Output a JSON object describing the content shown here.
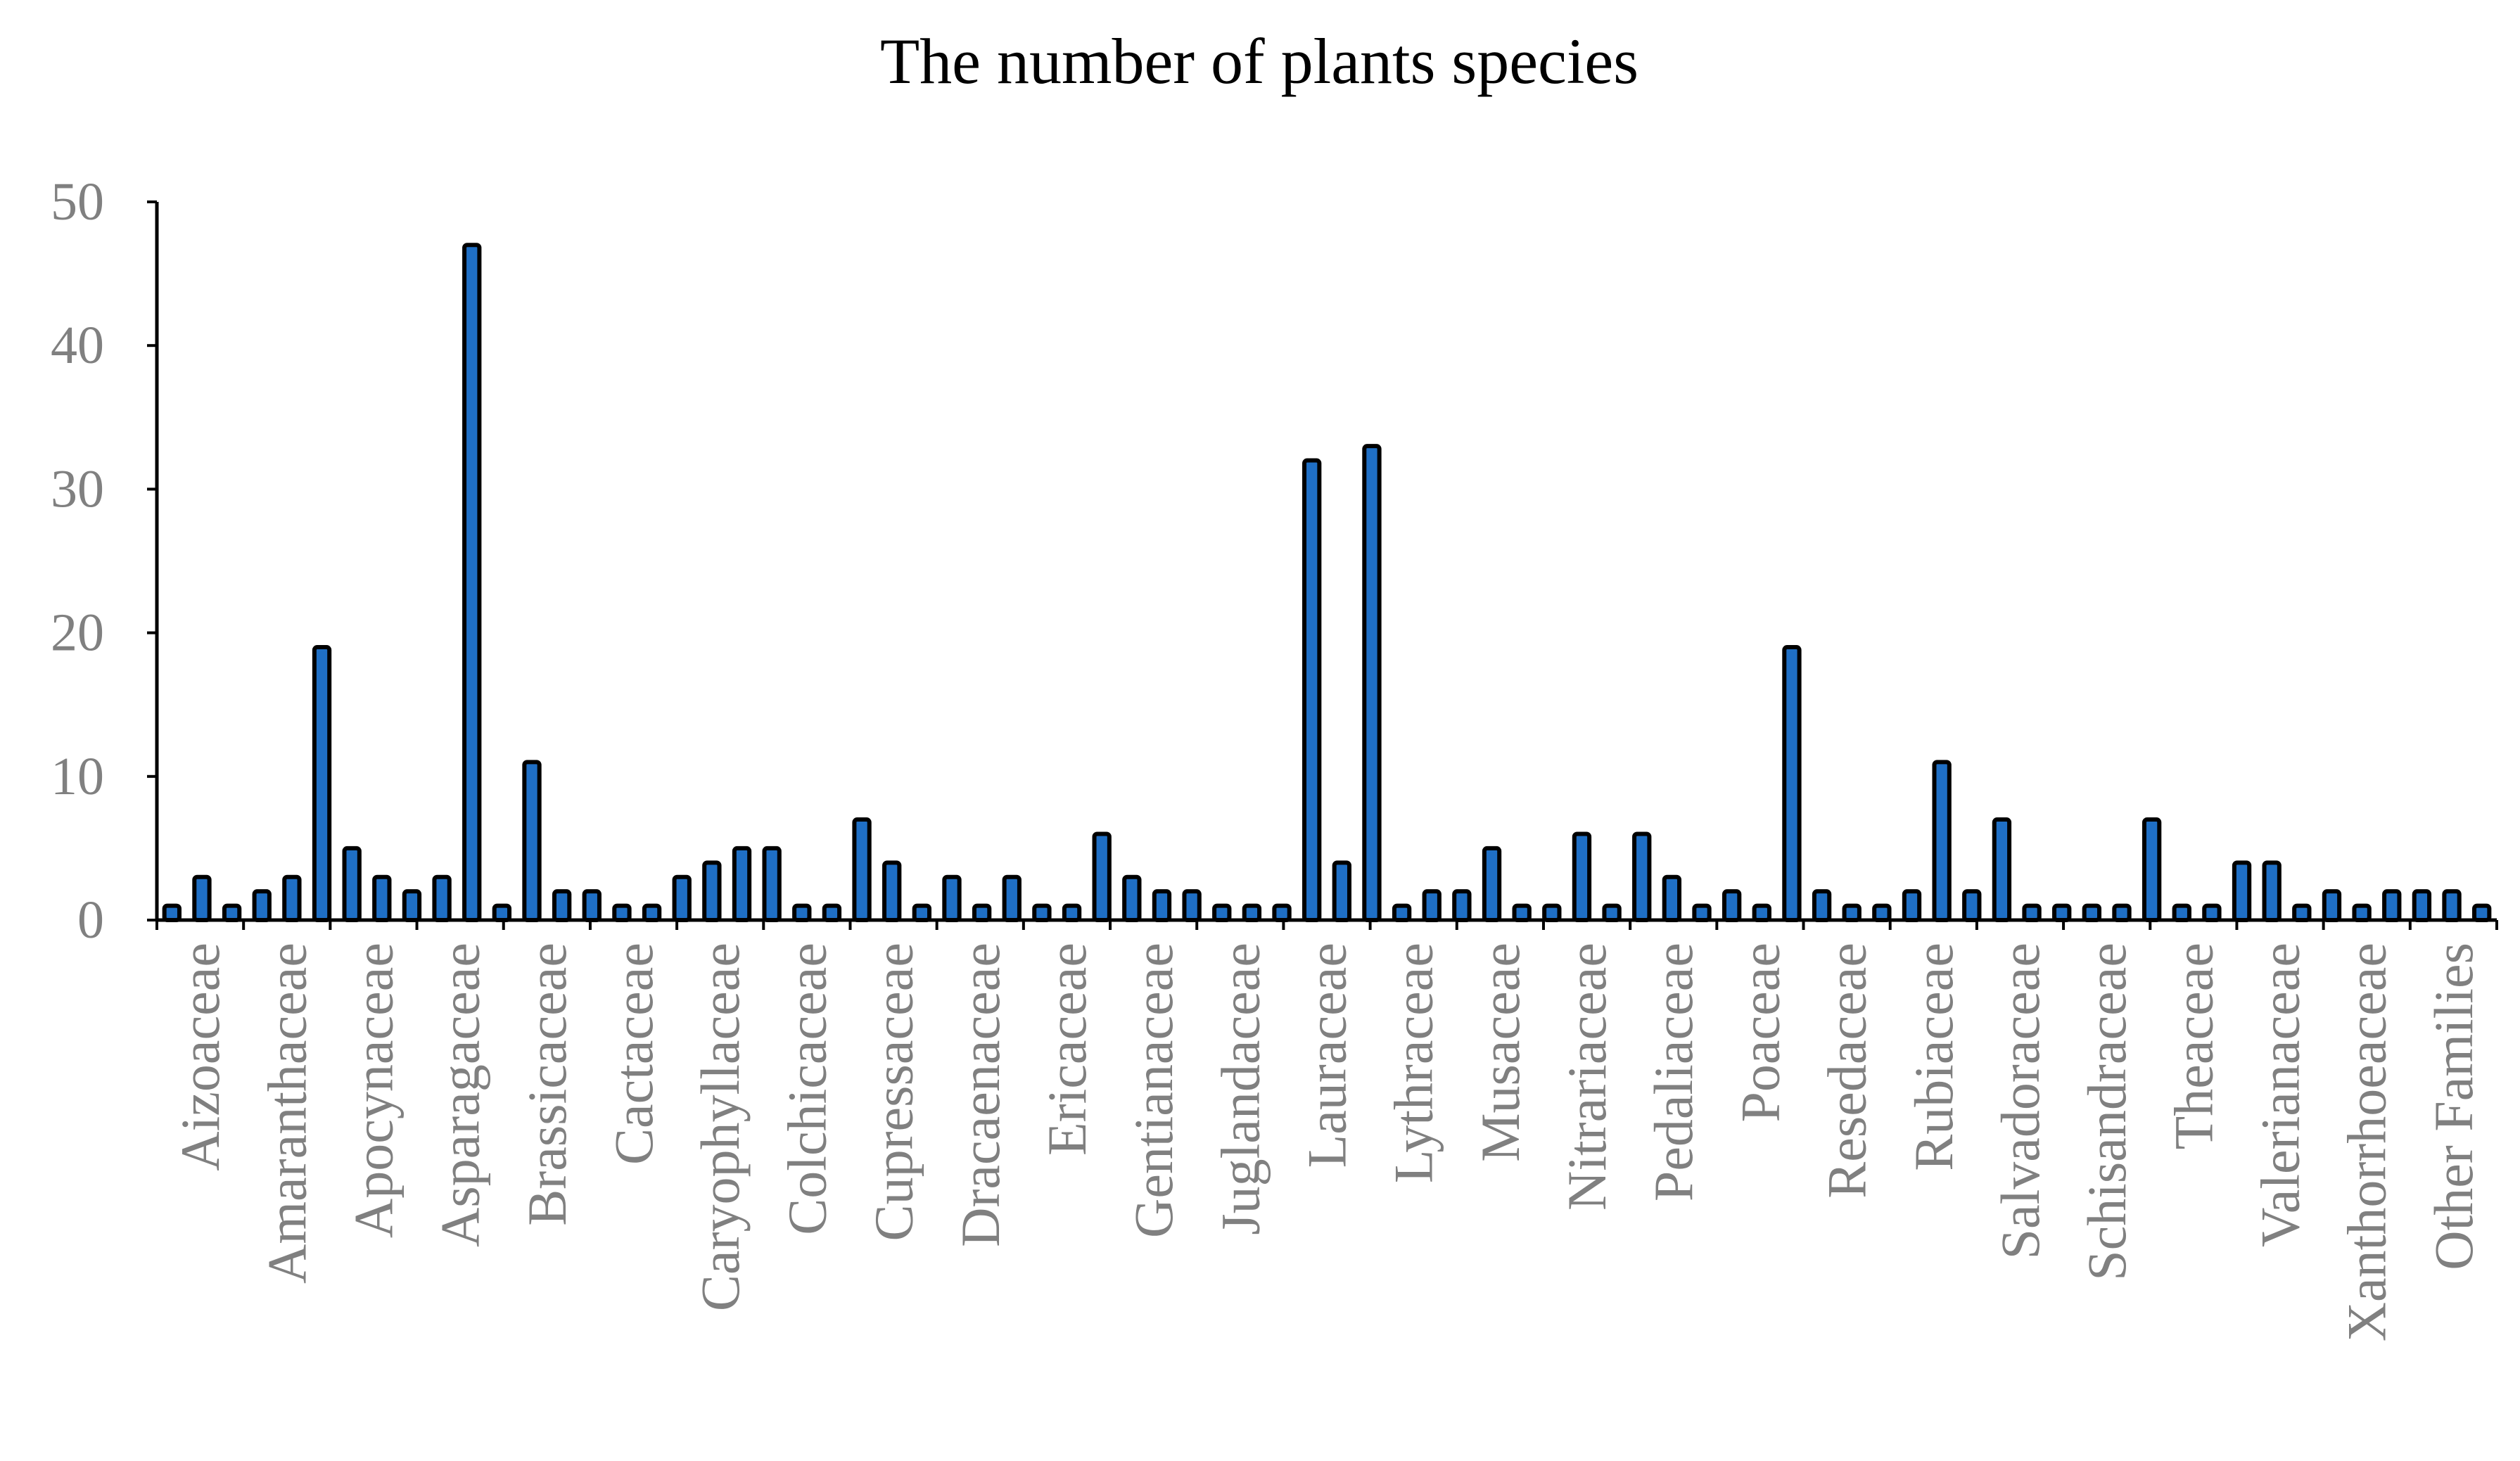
{
  "chart_data": {
    "type": "bar",
    "title": "The number of plants species",
    "xlabel": "",
    "ylabel": "",
    "ylim": [
      0,
      50
    ],
    "yticks": [
      0,
      10,
      20,
      30,
      40,
      50
    ],
    "bar_color": "#1f6fc5",
    "labeled_categories": [
      "Aizoaceae",
      "Amaranthaceae",
      "Apocynaceae",
      "Asparagaceae",
      "Brassicaceae",
      "Cactaceae",
      "Caryophyllaceae",
      "Colchicaceae",
      "Cupressaceae",
      "Dracaenaceae",
      "Ericaceae",
      "Gentianaceae",
      "Juglandaceae",
      "Lauraceae",
      "Lythraceae",
      "Musaceae",
      "Nitrariaceae",
      "Pedaliaceae",
      "Poaceae",
      "Resedaceae",
      "Rubiaceae",
      "Salvadoraceae",
      "Schisandraceae",
      "Theaceae",
      "Valerianaceae",
      "Xanthorrhoeaceae",
      "Other Families"
    ],
    "values": [
      1,
      3,
      1,
      2,
      3,
      19,
      5,
      3,
      2,
      3,
      47,
      1,
      11,
      2,
      2,
      1,
      1,
      3,
      4,
      5,
      5,
      1,
      1,
      7,
      4,
      1,
      3,
      1,
      3,
      1,
      1,
      6,
      3,
      2,
      2,
      1,
      1,
      1,
      32,
      4,
      33,
      1,
      2,
      2,
      5,
      1,
      1,
      6,
      1,
      6,
      3,
      1,
      2,
      1,
      19,
      2,
      1,
      1,
      2,
      11,
      2,
      7,
      1,
      1,
      1,
      1,
      7,
      1,
      1,
      4,
      4,
      1,
      2,
      1,
      2,
      2,
      2,
      1
    ]
  }
}
